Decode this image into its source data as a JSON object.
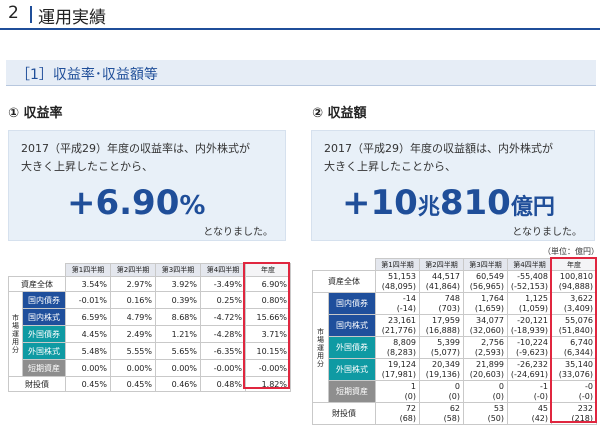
{
  "header": {
    "number": "2",
    "title": "運用実績"
  },
  "section": {
    "title": "［1］収益率･収益額等"
  },
  "left": {
    "subtitle": "① 収益率",
    "callout": {
      "line1": "2017（平成29）年度の収益率は、内外株式が",
      "line2": "大きく上昇したことから、",
      "value": "+6.90",
      "unit": "%",
      "tail": "となりました。"
    },
    "table": {
      "columns": [
        "第1四半期",
        "第2四半期",
        "第3四半期",
        "第4四半期",
        "年度"
      ],
      "group_label": "市場運用分",
      "rows": [
        {
          "label": "資産全体",
          "values": [
            "3.54%",
            "2.97%",
            "3.92%",
            "-3.49%",
            "6.90%"
          ]
        },
        {
          "label": "国内債券",
          "values": [
            "-0.01%",
            "0.16%",
            "0.39%",
            "0.25%",
            "0.80%"
          ]
        },
        {
          "label": "国内株式",
          "values": [
            "6.59%",
            "4.79%",
            "8.68%",
            "-4.72%",
            "15.66%"
          ]
        },
        {
          "label": "外国債券",
          "values": [
            "4.45%",
            "2.49%",
            "1.21%",
            "-4.28%",
            "3.71%"
          ]
        },
        {
          "label": "外国株式",
          "values": [
            "5.48%",
            "5.55%",
            "5.65%",
            "-6.35%",
            "10.15%"
          ]
        },
        {
          "label": "短期資産",
          "values": [
            "0.00%",
            "0.00%",
            "0.00%",
            "-0.00%",
            "-0.00%"
          ]
        },
        {
          "label": "財投債",
          "values": [
            "0.45%",
            "0.45%",
            "0.46%",
            "0.48%",
            "1.82%"
          ]
        }
      ]
    }
  },
  "right": {
    "subtitle": "② 収益額",
    "callout": {
      "line1": "2017（平成29）年度の収益額は、内外株式が",
      "line2": "大きく上昇したことから、",
      "value_a": "+10",
      "unit_a": "兆",
      "value_b": "810",
      "unit_b": "億円",
      "tail": "となりました。"
    },
    "unit_note": "（単位：億円）",
    "table": {
      "columns": [
        "第1四半期",
        "第2四半期",
        "第3四半期",
        "第4四半期",
        "年度"
      ],
      "group_label": "市場運用分",
      "rows": [
        {
          "label": "資産全体",
          "values": [
            "51,153",
            "44,517",
            "60,549",
            "-55,408",
            "100,810"
          ],
          "sub": [
            "(48,095)",
            "(41,864)",
            "(56,965)",
            "(-52,153)",
            "(94,888)"
          ]
        },
        {
          "label": "国内債券",
          "values": [
            "-14",
            "748",
            "1,764",
            "1,125",
            "3,622"
          ],
          "sub": [
            "(-14)",
            "(703)",
            "(1,659)",
            "(1,059)",
            "(3,409)"
          ]
        },
        {
          "label": "国内株式",
          "values": [
            "23,161",
            "17,959",
            "34,077",
            "-20,121",
            "55,076"
          ],
          "sub": [
            "(21,776)",
            "(16,888)",
            "(32,060)",
            "(-18,939)",
            "(51,840)"
          ]
        },
        {
          "label": "外国債券",
          "values": [
            "8,809",
            "5,399",
            "2,756",
            "-10,224",
            "6,740"
          ],
          "sub": [
            "(8,283)",
            "(5,077)",
            "(2,593)",
            "(-9,623)",
            "(6,344)"
          ]
        },
        {
          "label": "外国株式",
          "values": [
            "19,124",
            "20,349",
            "21,899",
            "-26,232",
            "35,140"
          ],
          "sub": [
            "(17,981)",
            "(19,136)",
            "(20,603)",
            "(-24,691)",
            "(33,076)"
          ]
        },
        {
          "label": "短期資産",
          "values": [
            "1",
            "0",
            "0",
            "-1",
            "-0"
          ],
          "sub": [
            "(0)",
            "(0)",
            "(0)",
            "(-0)",
            "(-0)"
          ]
        },
        {
          "label": "財投債",
          "values": [
            "72",
            "62",
            "53",
            "45",
            "232"
          ],
          "sub": [
            "(68)",
            "(58)",
            "(50)",
            "(42)",
            "(218)"
          ]
        }
      ]
    }
  }
}
